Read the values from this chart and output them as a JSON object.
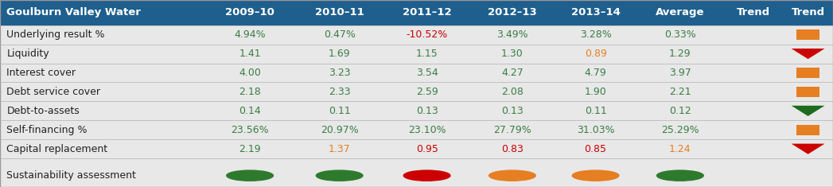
{
  "header_bg": "#1e5f8e",
  "header_text_color": "#ffffff",
  "table_bg": "#e8e8e8",
  "columns": [
    "Goulburn Valley Water",
    "2009–10",
    "2010–11",
    "2011–12",
    "2012–13",
    "2013–14",
    "Average",
    "Trend"
  ],
  "rows": [
    {
      "label": "Underlying result %",
      "values": [
        "4.94%",
        "0.47%",
        "-10.52%",
        "3.49%",
        "3.28%",
        "0.33%"
      ],
      "value_colors": [
        "#3a7d44",
        "#3a7d44",
        "#cc0000",
        "#3a7d44",
        "#3a7d44",
        "#3a7d44"
      ],
      "trend": "orange_square"
    },
    {
      "label": "Liquidity",
      "values": [
        "1.41",
        "1.69",
        "1.15",
        "1.30",
        "0.89",
        "1.29"
      ],
      "value_colors": [
        "#3a7d44",
        "#3a7d44",
        "#3a7d44",
        "#3a7d44",
        "#e67e22",
        "#3a7d44"
      ],
      "trend": "red_triangle_down"
    },
    {
      "label": "Interest cover",
      "values": [
        "4.00",
        "3.23",
        "3.54",
        "4.27",
        "4.79",
        "3.97"
      ],
      "value_colors": [
        "#3a7d44",
        "#3a7d44",
        "#3a7d44",
        "#3a7d44",
        "#3a7d44",
        "#3a7d44"
      ],
      "trend": "orange_square"
    },
    {
      "label": "Debt service cover",
      "values": [
        "2.18",
        "2.33",
        "2.59",
        "2.08",
        "1.90",
        "2.21"
      ],
      "value_colors": [
        "#3a7d44",
        "#3a7d44",
        "#3a7d44",
        "#3a7d44",
        "#3a7d44",
        "#3a7d44"
      ],
      "trend": "orange_square"
    },
    {
      "label": "Debt-to-assets",
      "values": [
        "0.14",
        "0.11",
        "0.13",
        "0.13",
        "0.11",
        "0.12"
      ],
      "value_colors": [
        "#3a7d44",
        "#3a7d44",
        "#3a7d44",
        "#3a7d44",
        "#3a7d44",
        "#3a7d44"
      ],
      "trend": "green_triangle_down"
    },
    {
      "label": "Self-financing %",
      "values": [
        "23.56%",
        "20.97%",
        "23.10%",
        "27.79%",
        "31.03%",
        "25.29%"
      ],
      "value_colors": [
        "#3a7d44",
        "#3a7d44",
        "#3a7d44",
        "#3a7d44",
        "#3a7d44",
        "#3a7d44"
      ],
      "trend": "orange_square"
    },
    {
      "label": "Capital replacement",
      "values": [
        "2.19",
        "1.37",
        "0.95",
        "0.83",
        "0.85",
        "1.24"
      ],
      "value_colors": [
        "#3a7d44",
        "#e67e22",
        "#cc0000",
        "#cc0000",
        "#cc0000",
        "#e67e22"
      ],
      "trend": "red_triangle_down"
    }
  ],
  "sustainability_dots": [
    "#2d7a2d",
    "#2d7a2d",
    "#cc0000",
    "#e67e22",
    "#e67e22",
    "#2d7a2d"
  ],
  "col_boundaries": [
    0.0,
    0.245,
    0.355,
    0.46,
    0.565,
    0.665,
    0.765,
    0.868,
    0.94,
    1.0
  ],
  "orange": "#e67e22",
  "red": "#cc0000",
  "dark_green": "#1e6b1e"
}
